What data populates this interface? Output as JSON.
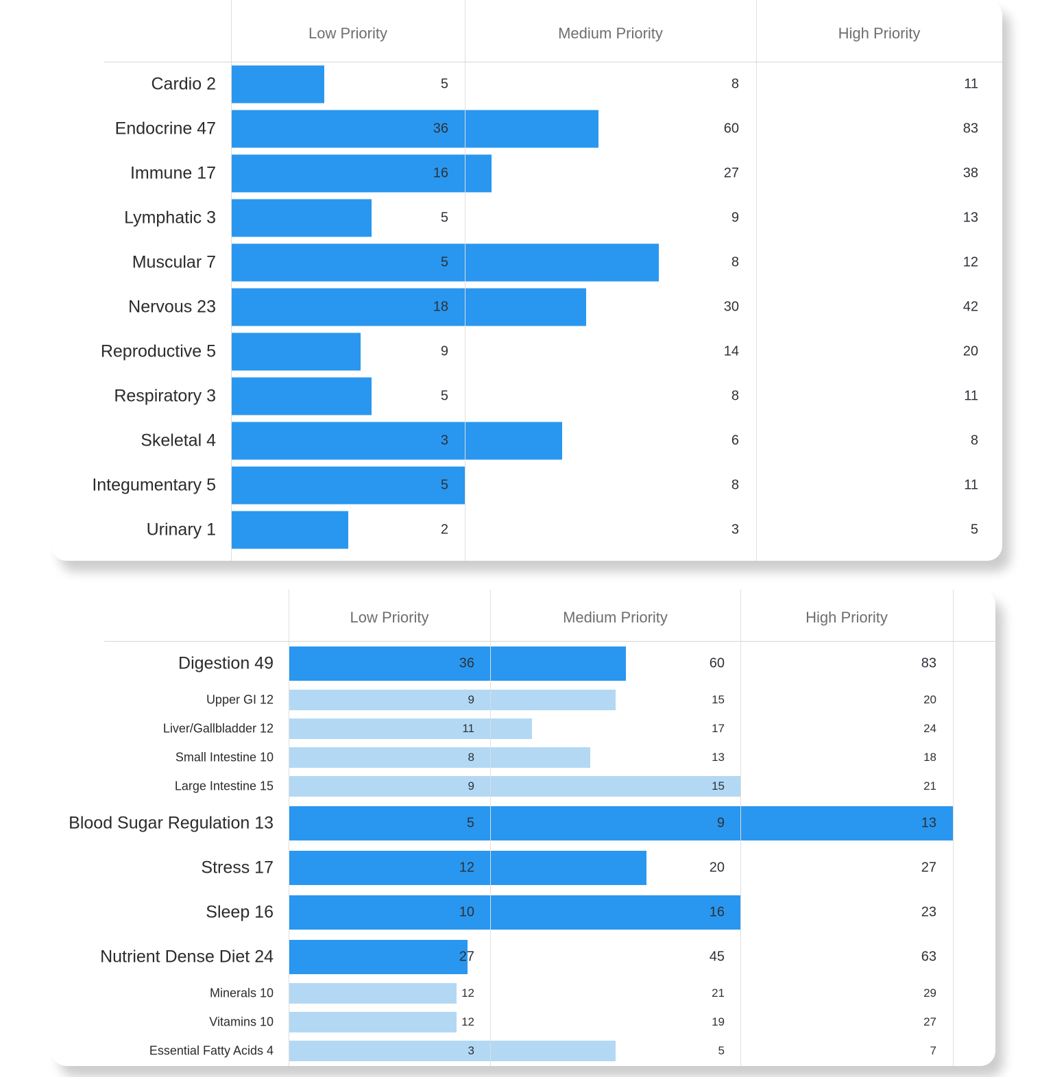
{
  "colors": {
    "bar_primary": "#2997ef",
    "bar_secondary": "#b3d8f4",
    "grid_line": "#dedede",
    "header_text": "#6e6e6e",
    "label_text": "#2b2b2b",
    "value_text": "#2d3138",
    "card_background": "#ffffff"
  },
  "chart_data": [
    {
      "type": "bar",
      "orientation": "horizontal",
      "title": "",
      "columns": [
        "Low Priority",
        "Medium Priority",
        "High Priority"
      ],
      "value_columns": [
        "low",
        "medium",
        "high"
      ],
      "rows": [
        {
          "label": "Cardio 2",
          "score": 2,
          "low": 5,
          "medium": 8,
          "high": 11,
          "level": "main"
        },
        {
          "label": "Endocrine 47",
          "score": 47,
          "low": 36,
          "medium": 60,
          "high": 83,
          "level": "main"
        },
        {
          "label": "Immune 17",
          "score": 17,
          "low": 16,
          "medium": 27,
          "high": 38,
          "level": "main"
        },
        {
          "label": "Lymphatic 3",
          "score": 3,
          "low": 5,
          "medium": 9,
          "high": 13,
          "level": "main"
        },
        {
          "label": "Muscular 7",
          "score": 7,
          "low": 5,
          "medium": 8,
          "high": 12,
          "level": "main"
        },
        {
          "label": "Nervous 23",
          "score": 23,
          "low": 18,
          "medium": 30,
          "high": 42,
          "level": "main"
        },
        {
          "label": "Reproductive 5",
          "score": 5,
          "low": 9,
          "medium": 14,
          "high": 20,
          "level": "main"
        },
        {
          "label": "Respiratory 3",
          "score": 3,
          "low": 5,
          "medium": 8,
          "high": 11,
          "level": "main"
        },
        {
          "label": "Skeletal 4",
          "score": 4,
          "low": 3,
          "medium": 6,
          "high": 8,
          "level": "main"
        },
        {
          "label": "Integumentary 5",
          "score": 5,
          "low": 5,
          "medium": 8,
          "high": 11,
          "level": "main"
        },
        {
          "label": "Urinary 1",
          "score": 1,
          "low": 2,
          "medium": 3,
          "high": 5,
          "level": "main"
        }
      ]
    },
    {
      "type": "bar",
      "orientation": "horizontal",
      "title": "",
      "columns": [
        "Low Priority",
        "Medium Priority",
        "High Priority"
      ],
      "value_columns": [
        "low",
        "medium",
        "high"
      ],
      "rows": [
        {
          "label": "Digestion 49",
          "score": 49,
          "low": 36,
          "medium": 60,
          "high": 83,
          "level": "main"
        },
        {
          "label": "Upper GI 12",
          "score": 12,
          "low": 9,
          "medium": 15,
          "high": 20,
          "level": "sub"
        },
        {
          "label": "Liver/Gallbladder 12",
          "score": 12,
          "low": 11,
          "medium": 17,
          "high": 24,
          "level": "sub"
        },
        {
          "label": "Small Intestine 10",
          "score": 10,
          "low": 8,
          "medium": 13,
          "high": 18,
          "level": "sub"
        },
        {
          "label": "Large Intestine 15",
          "score": 15,
          "low": 9,
          "medium": 15,
          "high": 21,
          "level": "sub"
        },
        {
          "label": "Blood Sugar Regulation 13",
          "score": 13,
          "low": 5,
          "medium": 9,
          "high": 13,
          "level": "main"
        },
        {
          "label": "Stress 17",
          "score": 17,
          "low": 12,
          "medium": 20,
          "high": 27,
          "level": "main"
        },
        {
          "label": "Sleep 16",
          "score": 16,
          "low": 10,
          "medium": 16,
          "high": 23,
          "level": "main"
        },
        {
          "label": "Nutrient Dense Diet 24",
          "score": 24,
          "low": 27,
          "medium": 45,
          "high": 63,
          "level": "main"
        },
        {
          "label": "Minerals 10",
          "score": 10,
          "low": 12,
          "medium": 21,
          "high": 29,
          "level": "sub"
        },
        {
          "label": "Vitamins 10",
          "score": 10,
          "low": 12,
          "medium": 19,
          "high": 27,
          "level": "sub"
        },
        {
          "label": "Essential Fatty Acids 4",
          "score": 4,
          "low": 3,
          "medium": 5,
          "high": 7,
          "level": "sub"
        }
      ]
    }
  ]
}
